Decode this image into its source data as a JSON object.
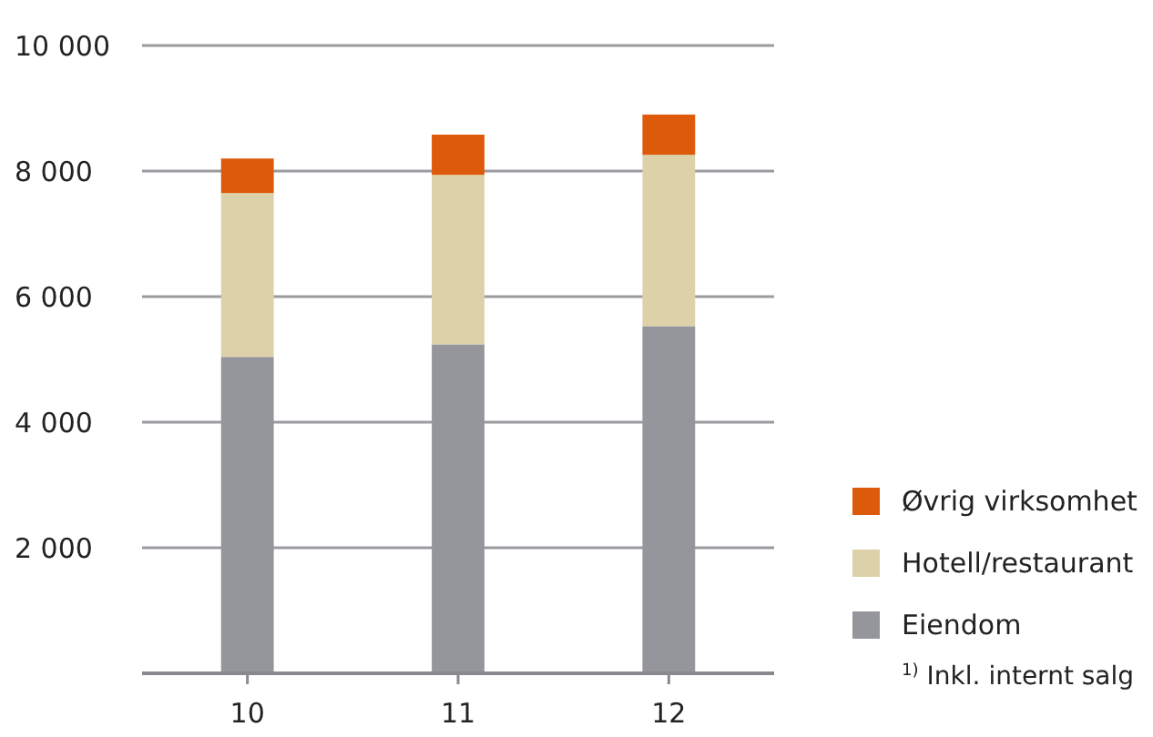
{
  "chart_data": {
    "type": "bar",
    "stacked": true,
    "categories": [
      "10",
      "11",
      "12"
    ],
    "series": [
      {
        "name": "Eiendom",
        "color": "#95969b",
        "values": [
          5040,
          5240,
          5530
        ]
      },
      {
        "name": "Hotell/restaurant",
        "color": "#ddd1a9",
        "values": [
          2610,
          2700,
          2730
        ]
      },
      {
        "name": "Øvrig virksomhet",
        "color": "#dd5a0a",
        "values": [
          550,
          640,
          640
        ]
      }
    ],
    "ylim": [
      0,
      10000
    ],
    "yticks": [
      {
        "value": 2000,
        "label": "2 000"
      },
      {
        "value": 4000,
        "label": "4 000"
      },
      {
        "value": 6000,
        "label": "6 000"
      },
      {
        "value": 8000,
        "label": "8 000"
      },
      {
        "value": 10000,
        "label": "10 000"
      }
    ],
    "grid": "y",
    "legend": "right",
    "annotations": [
      "$^{1)}$ Inkl. internt salg"
    ]
  }
}
